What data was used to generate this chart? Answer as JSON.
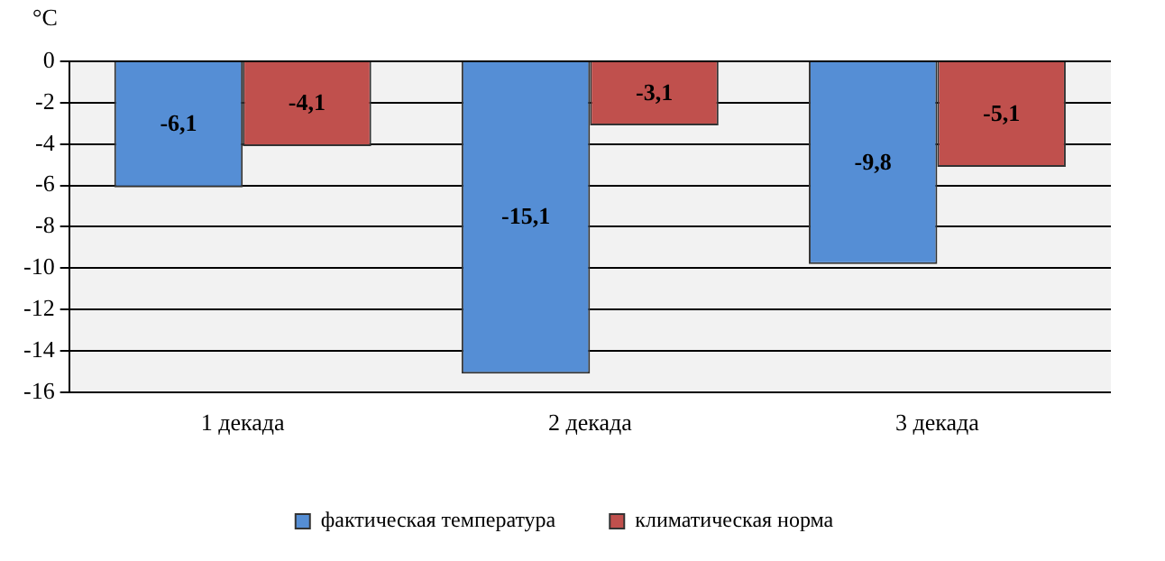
{
  "chart_data": {
    "type": "bar",
    "ylabel": "°C",
    "categories": [
      "1 декада",
      "2 декада",
      "3 декада"
    ],
    "series": [
      {
        "name": "фактическая температура",
        "color": "#558ed5",
        "values": [
          -6.1,
          -15.1,
          -9.8
        ],
        "value_labels": [
          "-6,1",
          "-15,1",
          "-9,8"
        ]
      },
      {
        "name": "климатическая норма",
        "color": "#c0504d",
        "values": [
          -4.1,
          -3.1,
          -5.1
        ],
        "value_labels": [
          "-4,1",
          "-3,1",
          "-5,1"
        ]
      }
    ],
    "ylim": [
      -16,
      0
    ],
    "yticks": [
      0,
      -2,
      -4,
      -6,
      -8,
      -10,
      -12,
      -14,
      -16
    ],
    "grid": "y",
    "legend": "bottom"
  }
}
